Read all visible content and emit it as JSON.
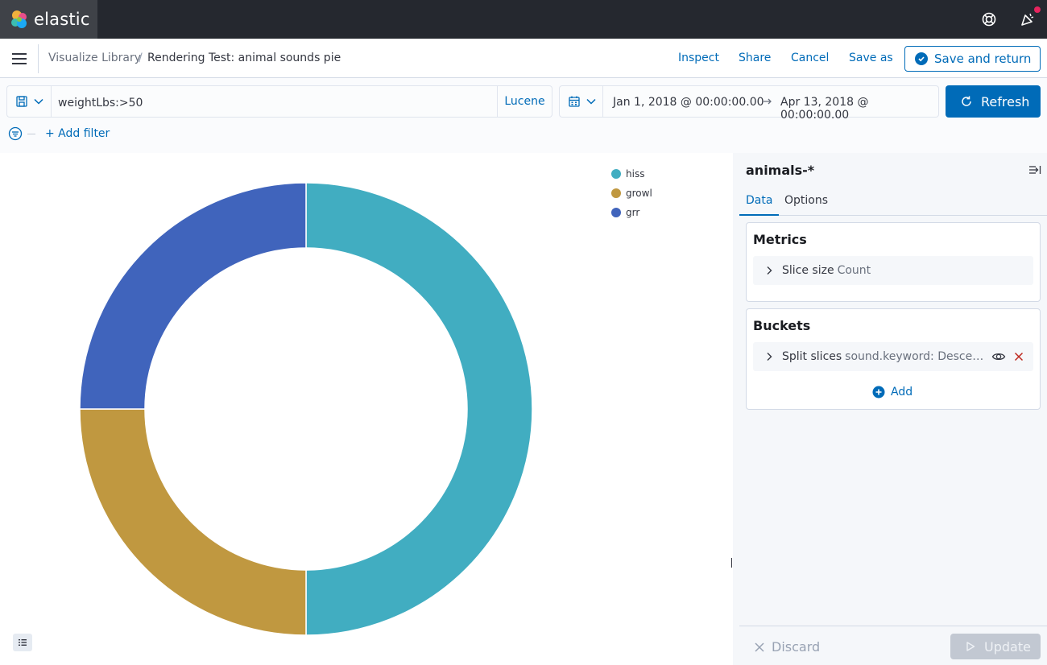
{
  "app": {
    "logo_text": "elastic"
  },
  "breadcrumb": {
    "parent": "Visualize Library",
    "separator": "/",
    "current": "Rendering Test: animal sounds pie"
  },
  "toolbar": {
    "inspect": "Inspect",
    "share": "Share",
    "cancel": "Cancel",
    "save_as": "Save as",
    "save_and_return": "Save and return"
  },
  "query": {
    "value": "weightLbs:>50",
    "language": "Lucene"
  },
  "time": {
    "start": "Jan 1, 2018 @ 00:00:00.00",
    "end": "Apr 13, 2018 @ 00:00:00.00",
    "refresh": "Refresh"
  },
  "filters": {
    "add_label": "+ Add filter"
  },
  "chart_data": {
    "type": "pie",
    "donut": true,
    "categories": [
      "hiss",
      "growl",
      "grr"
    ],
    "values": [
      50,
      25,
      25
    ],
    "colors": [
      "#41adc1",
      "#c09840",
      "#4064bc"
    ],
    "legend_position": "top-right"
  },
  "sidebar": {
    "index_pattern": "animals-*",
    "tabs": [
      {
        "label": "Data"
      },
      {
        "label": "Options"
      }
    ],
    "metrics": {
      "title": "Metrics",
      "row_name": "Slice size",
      "row_desc": "Count"
    },
    "buckets": {
      "title": "Buckets",
      "row_name": "Split slices",
      "row_desc": "sound.keyword: Descen...",
      "add_label": "Add"
    },
    "discard": "Discard",
    "update": "Update"
  },
  "colors": {
    "accent": "#006bb8",
    "danger": "#bd271e",
    "header_bg": "#25282f"
  }
}
